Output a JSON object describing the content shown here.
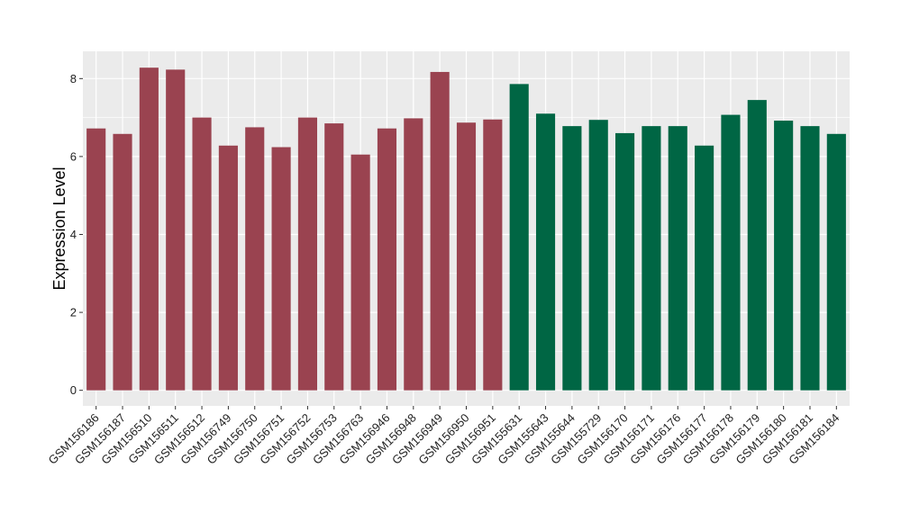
{
  "chart_data": {
    "type": "bar",
    "title": "",
    "xlabel": "",
    "ylabel": "Expression Level",
    "ylim": [
      -0.4,
      8.7
    ],
    "yticks": [
      0,
      2,
      4,
      6,
      8
    ],
    "grid": true,
    "legend": "none",
    "panel_color": "#ebebeb",
    "grid_color": "#ffffff",
    "categories": [
      "GSM156186",
      "GSM156187",
      "GSM156510",
      "GSM156511",
      "GSM156512",
      "GSM156749",
      "GSM156750",
      "GSM156751",
      "GSM156752",
      "GSM156753",
      "GSM156763",
      "GSM156946",
      "GSM156948",
      "GSM156949",
      "GSM156950",
      "GSM156951",
      "GSM155631",
      "GSM155643",
      "GSM155644",
      "GSM155729",
      "GSM156170",
      "GSM156171",
      "GSM156176",
      "GSM156177",
      "GSM156178",
      "GSM156179",
      "GSM156180",
      "GSM156181",
      "GSM156184"
    ],
    "values": [
      6.72,
      6.58,
      8.28,
      8.23,
      7.0,
      6.28,
      6.75,
      6.24,
      7.0,
      6.85,
      6.05,
      6.72,
      6.98,
      8.17,
      6.87,
      6.95,
      7.86,
      7.1,
      6.78,
      6.94,
      6.6,
      6.78,
      6.78,
      6.28,
      7.07,
      7.45,
      6.92,
      6.78,
      6.58
    ],
    "bar_colors": [
      "#9a4350",
      "#9a4350",
      "#9a4350",
      "#9a4350",
      "#9a4350",
      "#9a4350",
      "#9a4350",
      "#9a4350",
      "#9a4350",
      "#9a4350",
      "#9a4350",
      "#9a4350",
      "#9a4350",
      "#9a4350",
      "#9a4350",
      "#9a4350",
      "#006644",
      "#006644",
      "#006644",
      "#006644",
      "#006644",
      "#006644",
      "#006644",
      "#006644",
      "#006644",
      "#006644",
      "#006644",
      "#006644",
      "#006644"
    ]
  }
}
